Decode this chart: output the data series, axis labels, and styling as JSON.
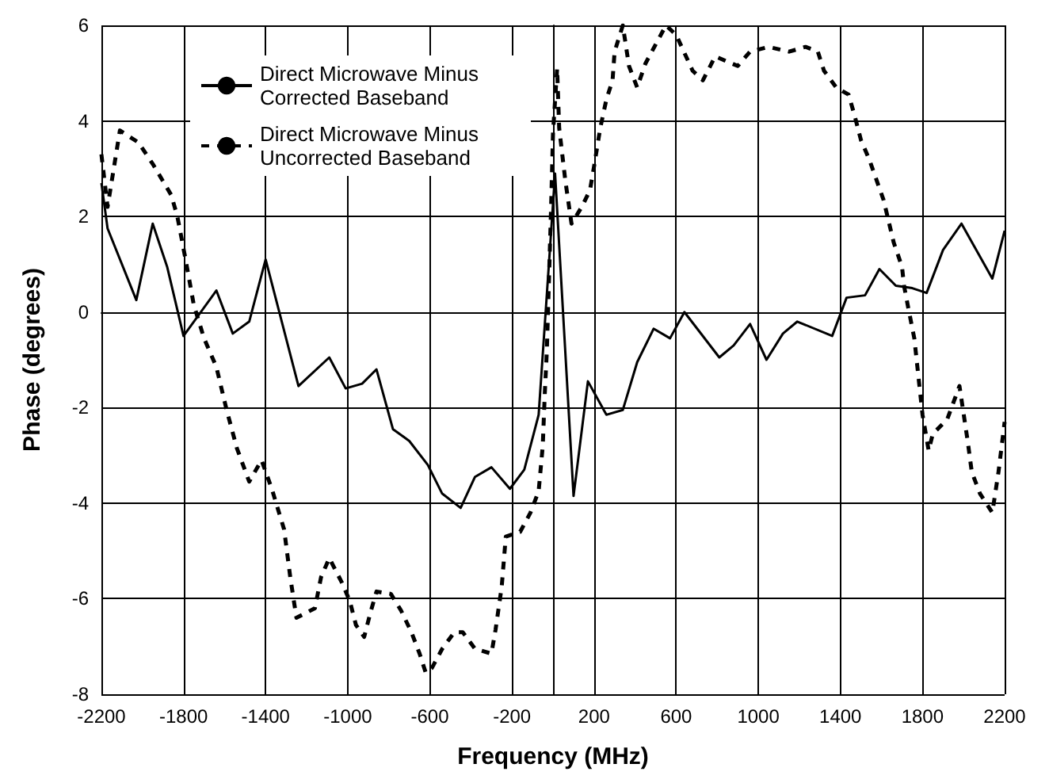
{
  "chart_data": {
    "type": "line",
    "xlabel": "Frequency (MHz)",
    "ylabel": "Phase (degrees)",
    "xlim": [
      -2200,
      2200
    ],
    "xticks": [
      -2200,
      -1800,
      -1400,
      -1000,
      -600,
      -200,
      200,
      600,
      1000,
      1400,
      1800,
      2200
    ],
    "ylim": [
      -8,
      6
    ],
    "yticks": [
      -8,
      -6,
      -4,
      -2,
      0,
      2,
      4,
      6
    ],
    "grid": true,
    "legend": "top left",
    "marker": "none",
    "series": [
      {
        "name": "Direct Microwave Minus Corrected Baseband",
        "color": "#000000",
        "line_style": "solid",
        "x": [
          -2200,
          -2170,
          -2030,
          -1950,
          -1880,
          -1800,
          -1640,
          -1560,
          -1480,
          -1400,
          -1240,
          -1090,
          -1010,
          -930,
          -860,
          -780,
          -700,
          -610,
          -540,
          -450,
          -380,
          -300,
          -210,
          -140,
          -70,
          10,
          100,
          170,
          260,
          340,
          410,
          490,
          570,
          640,
          810,
          880,
          960,
          1040,
          1120,
          1190,
          1360,
          1430,
          1520,
          1590,
          1670,
          1750,
          1820,
          1900,
          1990,
          2140,
          2200
        ],
        "values": [
          2.7,
          1.75,
          0.25,
          1.85,
          0.95,
          -0.5,
          0.45,
          -0.45,
          -0.2,
          1.1,
          -1.55,
          -0.95,
          -1.6,
          -1.5,
          -1.2,
          -2.45,
          -2.7,
          -3.2,
          -3.8,
          -4.1,
          -3.45,
          -3.25,
          -3.7,
          -3.3,
          -2.15,
          2.9,
          -3.85,
          -1.45,
          -2.15,
          -2.05,
          -1.05,
          -0.35,
          -0.55,
          0,
          -0.95,
          -0.7,
          -0.25,
          -1,
          -0.45,
          -0.2,
          -0.5,
          0.3,
          0.35,
          0.9,
          0.55,
          0.5,
          0.4,
          1.3,
          1.85,
          0.7,
          1.7
        ]
      },
      {
        "name": "Direct Microwave Minus Uncorrected Baseband",
        "color": "#000000",
        "line_style": "dashed",
        "x": [
          -2200,
          -2170,
          -2110,
          -2020,
          -1950,
          -1860,
          -1830,
          -1790,
          -1750,
          -1700,
          -1640,
          -1590,
          -1540,
          -1480,
          -1420,
          -1370,
          -1310,
          -1280,
          -1250,
          -1160,
          -1130,
          -1090,
          -1030,
          -990,
          -960,
          -920,
          -890,
          -860,
          -790,
          -740,
          -690,
          -650,
          -620,
          -590,
          -540,
          -480,
          -440,
          -380,
          -300,
          -280,
          -250,
          -230,
          -160,
          -110,
          -70,
          -50,
          -40,
          -30,
          -10,
          0,
          20,
          30,
          60,
          90,
          140,
          180,
          200,
          230,
          260,
          290,
          300,
          340,
          370,
          410,
          450,
          550,
          600,
          680,
          730,
          790,
          900,
          960,
          1050,
          1150,
          1230,
          1290,
          1320,
          1380,
          1440,
          1470,
          1500,
          1540,
          1610,
          1660,
          1700,
          1710,
          1730,
          1760,
          1780,
          1800,
          1830,
          1850,
          1920,
          1980,
          2020,
          2040,
          2080,
          2140,
          2170,
          2200
        ],
        "values": [
          3.3,
          2.2,
          3.8,
          3.55,
          3.1,
          2.45,
          2,
          1.1,
          0.15,
          -0.55,
          -1.15,
          -2.05,
          -2.85,
          -3.55,
          -3.1,
          -3.7,
          -4.55,
          -5.55,
          -6.4,
          -6.2,
          -5.55,
          -5.15,
          -5.65,
          -6.05,
          -6.55,
          -6.8,
          -6.3,
          -5.85,
          -5.9,
          -6.25,
          -6.7,
          -7.15,
          -7.55,
          -7.45,
          -7.05,
          -6.7,
          -6.7,
          -7.05,
          -7.15,
          -6.65,
          -5.75,
          -4.7,
          -4.6,
          -4.2,
          -3.75,
          -2.8,
          -1.7,
          -0.8,
          2.1,
          3.75,
          5.1,
          3.85,
          2.75,
          1.85,
          2.2,
          2.55,
          3.05,
          3.85,
          4.45,
          4.85,
          5.45,
          6,
          5.15,
          4.7,
          5.2,
          6,
          5.8,
          5.05,
          4.85,
          5.35,
          5.15,
          5.45,
          5.55,
          5.45,
          5.55,
          5.45,
          5.05,
          4.7,
          4.55,
          4.1,
          3.6,
          3.2,
          2.35,
          1.45,
          0.95,
          0.55,
          0.1,
          -0.55,
          -1.35,
          -2.15,
          -2.9,
          -2.55,
          -2.25,
          -1.55,
          -2.7,
          -3.35,
          -3.8,
          -4.2,
          -3.35,
          -2.3
        ]
      }
    ]
  }
}
